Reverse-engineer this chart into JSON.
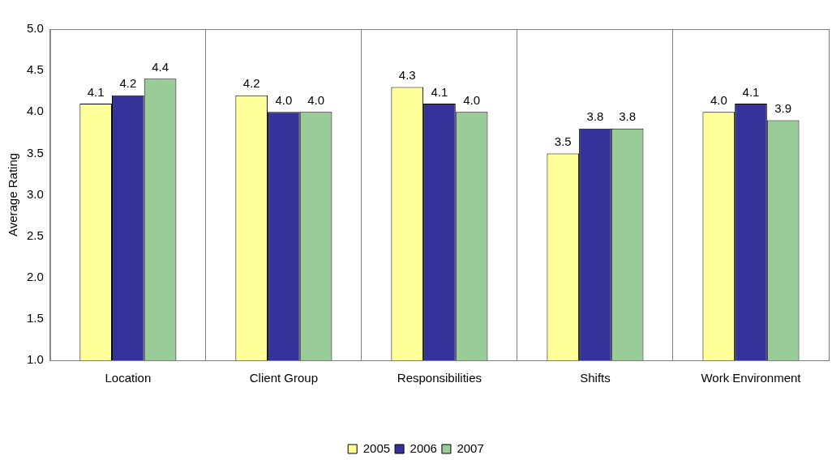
{
  "chart_data": {
    "type": "bar",
    "ylabel": "Average Rating",
    "categories": [
      "Location",
      "Client Group",
      "Responsibilities",
      "Shifts",
      "Work Environment"
    ],
    "series": [
      {
        "name": "2005",
        "color": "#ffff99",
        "values": [
          4.1,
          4.2,
          4.3,
          3.5,
          4.0
        ],
        "value_labels": [
          "4.1",
          "4.2",
          "4.3",
          "3.5",
          "4.0"
        ]
      },
      {
        "name": "2006",
        "color": "#333399",
        "values": [
          4.2,
          4.0,
          4.1,
          3.8,
          4.1
        ],
        "value_labels": [
          "4.2",
          "4.0",
          "4.1",
          "3.8",
          "4.1"
        ]
      },
      {
        "name": "2007",
        "color": "#99cc99",
        "values": [
          4.4,
          4.0,
          4.0,
          3.8,
          3.9
        ],
        "value_labels": [
          "4.4",
          "4.0",
          "4.0",
          "3.8",
          "3.9"
        ]
      }
    ],
    "ylim": [
      1.0,
      5.0
    ],
    "yticks": [
      {
        "value": 1,
        "label": "1.0"
      },
      1.5,
      {
        "value": 2,
        "label": "2.0"
      },
      2.5,
      {
        "value": 3,
        "label": "3.0"
      },
      3.5,
      {
        "value": 4,
        "label": "4.0"
      },
      4.5,
      {
        "value": 5,
        "label": "5.0"
      }
    ],
    "grid": "x",
    "legend": "bottom"
  }
}
